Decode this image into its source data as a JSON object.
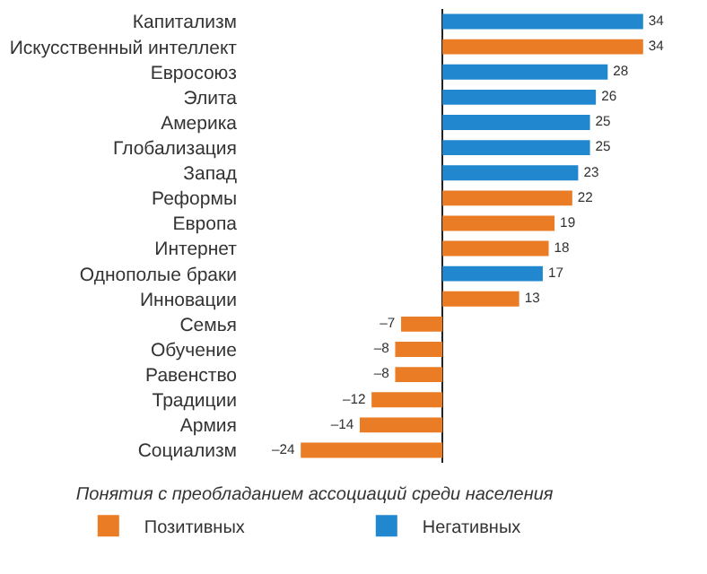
{
  "chart_data": {
    "type": "bar",
    "orientation": "horizontal",
    "stacked": true,
    "categories": [
      "Капитализм",
      "Искусственный интеллект",
      "Евросоюз",
      "Элита",
      "Америка",
      "Глобализация",
      "Запад",
      "Реформы",
      "Европа",
      "Интернет",
      "Однополые браки",
      "Инновации",
      "Семья",
      "Обучение",
      "Равенство",
      "Традиции",
      "Армия",
      "Социализм"
    ],
    "series": [
      {
        "name": "Позитивных",
        "color": "#e97c25",
        "values": [
          null,
          34,
          null,
          null,
          null,
          null,
          null,
          22,
          19,
          18,
          null,
          13,
          -7,
          -8,
          -8,
          -12,
          -14,
          -24
        ],
        "value_labels": [
          null,
          "34",
          null,
          null,
          null,
          null,
          null,
          "22",
          "19",
          "18",
          null,
          "13",
          "–7",
          "–8",
          "–8",
          "–12",
          "–14",
          "–24"
        ]
      },
      {
        "name": "Негативных",
        "color": "#2188d0",
        "values": [
          34,
          null,
          28,
          26,
          25,
          25,
          23,
          null,
          null,
          null,
          17,
          null,
          null,
          null,
          null,
          null,
          null,
          null
        ],
        "value_labels": [
          "34",
          null,
          "28",
          "26",
          "25",
          "25",
          "23",
          null,
          null,
          null,
          "17",
          null,
          null,
          null,
          null,
          null,
          null,
          null
        ]
      }
    ],
    "legend_title": "Понятия с преобладанием ассоциаций среди населения",
    "legend": "bottom",
    "tick_labels": "y"
  }
}
